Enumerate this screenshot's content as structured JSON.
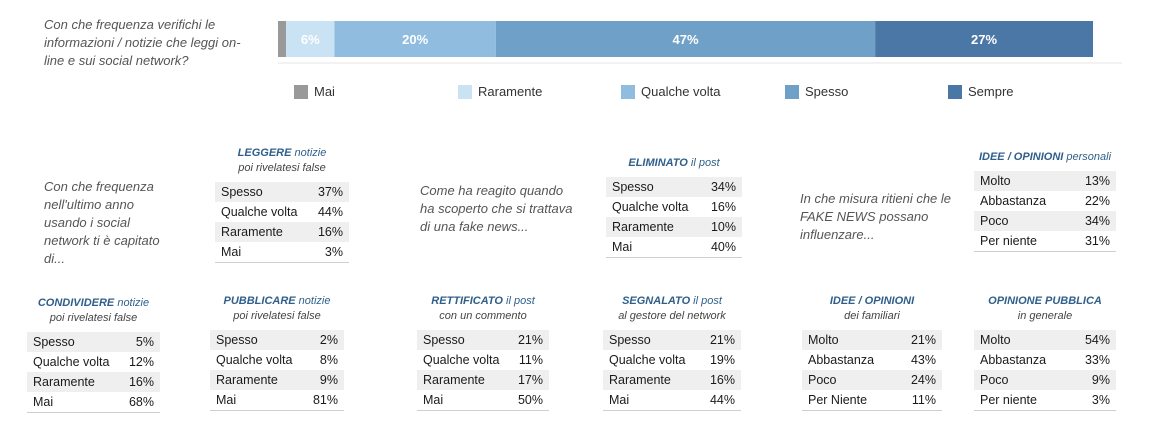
{
  "main_question": "Con che frequenza verifichi le informazioni / notizie che leggi on-line e  sui social network?",
  "chart_data": {
    "type": "bar",
    "orientation": "horizontal-stacked",
    "categories": [
      "Con che frequenza verifichi le informazioni / notizie che leggi on-line e  sui social network?"
    ],
    "series": [
      {
        "name": "Mai",
        "values": [
          1
        ],
        "label": "",
        "color": "#999999"
      },
      {
        "name": "Raramente",
        "values": [
          6
        ],
        "label": "6%",
        "color": "#c9e3f4"
      },
      {
        "name": "Qualche volta",
        "values": [
          20
        ],
        "label": "20%",
        "color": "#8fbcdf"
      },
      {
        "name": "Spesso",
        "values": [
          47
        ],
        "label": "47%",
        "color": "#6fa0c8"
      },
      {
        "name": "Sempre",
        "values": [
          27
        ],
        "label": "27%",
        "color": "#4a77a6"
      }
    ],
    "xlim": [
      0,
      101
    ],
    "legend_position": "bottom"
  },
  "questions": {
    "social": "Con che frequenza nell'ultimo anno usando i social network ti è capitato di...",
    "react": "Come ha reagito quando ha scoperto che si trattava di una fake news...",
    "fake": "In che misura ritieni che le FAKE NEWS possano influenzare..."
  },
  "tables": [
    {
      "key": "leggere",
      "title_strong": "LEGGERE",
      "title_rest": " notizie",
      "subtitle": "poi rivelatesi false",
      "rows": [
        {
          "label": "Spesso",
          "value": "37%"
        },
        {
          "label": "Qualche volta",
          "value": "44%"
        },
        {
          "label": "Raramente",
          "value": "16%"
        },
        {
          "label": "Mai",
          "value": "3%"
        }
      ]
    },
    {
      "key": "eliminato",
      "title_strong": "ELIMINATO",
      "title_rest": " il post",
      "subtitle": "",
      "rows": [
        {
          "label": "Spesso",
          "value": "34%"
        },
        {
          "label": "Qualche volta",
          "value": "16%"
        },
        {
          "label": "Raramente",
          "value": "10%"
        },
        {
          "label": "Mai",
          "value": "40%"
        }
      ]
    },
    {
      "key": "idee-personali",
      "title_strong": "IDEE / OPINIONI",
      "title_rest": " personali",
      "subtitle": "",
      "rows": [
        {
          "label": "Molto",
          "value": "13%"
        },
        {
          "label": "Abbastanza",
          "value": "22%"
        },
        {
          "label": "Poco",
          "value": "34%"
        },
        {
          "label": "Per niente",
          "value": "31%"
        }
      ]
    },
    {
      "key": "condividere",
      "title_strong": "CONDIVIDERE",
      "title_rest": " notizie",
      "subtitle": "poi rivelatesi false",
      "rows": [
        {
          "label": "Spesso",
          "value": "5%"
        },
        {
          "label": "Qualche volta",
          "value": "12%"
        },
        {
          "label": "Raramente",
          "value": "16%"
        },
        {
          "label": "Mai",
          "value": "68%"
        }
      ]
    },
    {
      "key": "pubblicare",
      "title_strong": "PUBBLICARE",
      "title_rest": " notizie",
      "subtitle": "poi rivelatesi false",
      "rows": [
        {
          "label": "Spesso",
          "value": "2%"
        },
        {
          "label": "Qualche volta",
          "value": "8%"
        },
        {
          "label": "Raramente",
          "value": "9%"
        },
        {
          "label": "Mai",
          "value": "81%"
        }
      ]
    },
    {
      "key": "rettificato",
      "title_strong": "RETTIFICATO",
      "title_rest": "  il post",
      "subtitle": "con un commento",
      "rows": [
        {
          "label": "Spesso",
          "value": "21%"
        },
        {
          "label": "Qualche volta",
          "value": "11%"
        },
        {
          "label": "Raramente",
          "value": "17%"
        },
        {
          "label": "Mai",
          "value": "50%"
        }
      ]
    },
    {
      "key": "segnalato",
      "title_strong": "SEGNALATO",
      "title_rest": "  il post",
      "subtitle": "al gestore del network",
      "rows": [
        {
          "label": "Spesso",
          "value": "21%"
        },
        {
          "label": "Qualche volta",
          "value": "19%"
        },
        {
          "label": "Raramente",
          "value": "16%"
        },
        {
          "label": "Mai",
          "value": "44%"
        }
      ]
    },
    {
      "key": "idee-familiari",
      "title_strong": "IDEE / OPINIONI",
      "title_rest": "",
      "subtitle": "dei familiari",
      "rows": [
        {
          "label": "Molto",
          "value": "21%"
        },
        {
          "label": "Abbastanza",
          "value": "43%"
        },
        {
          "label": "Poco",
          "value": "24%"
        },
        {
          "label": "Per Niente",
          "value": "11%"
        }
      ]
    },
    {
      "key": "opinione-pubblica",
      "title_strong": "OPINIONE PUBBLICA",
      "title_rest": "",
      "subtitle": "in generale",
      "rows": [
        {
          "label": "Molto",
          "value": "54%"
        },
        {
          "label": "Abbastanza",
          "value": "33%"
        },
        {
          "label": "Poco",
          "value": "9%"
        },
        {
          "label": "Per niente",
          "value": "3%"
        }
      ]
    }
  ]
}
